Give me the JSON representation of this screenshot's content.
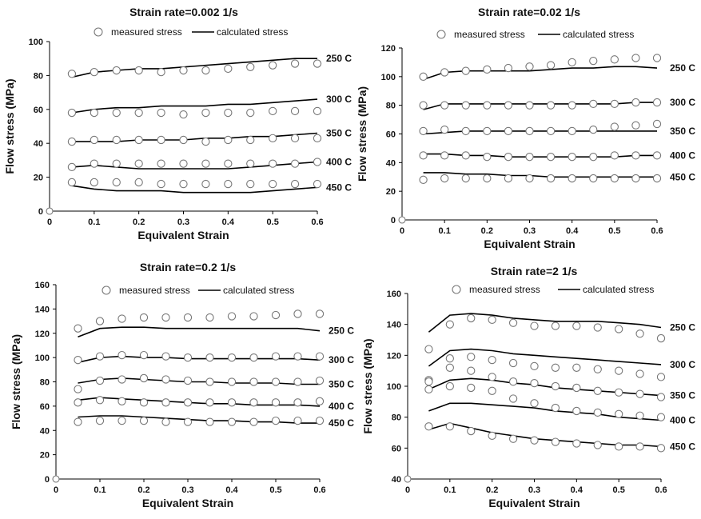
{
  "legend": {
    "measured": "measured stress",
    "calculated": "calculated stress"
  },
  "chart_data": [
    {
      "type": "scatter",
      "title": "Strain rate=0.002 1/s",
      "xlabel": "Equivalent Strain",
      "ylabel": "Flow stress (MPa)",
      "xlim": [
        0,
        0.6
      ],
      "ylim": [
        0,
        100
      ],
      "xticks": [
        "0",
        "0.1",
        "0.2",
        "0.3",
        "0.4",
        "0.5",
        "0.6"
      ],
      "yticks": [
        "0",
        "20",
        "40",
        "60",
        "80",
        "100"
      ],
      "legend_items": [
        "measured stress",
        "calculated stress"
      ],
      "x": [
        0.05,
        0.1,
        0.15,
        0.2,
        0.25,
        0.3,
        0.35,
        0.4,
        0.45,
        0.5,
        0.55,
        0.6
      ],
      "series": [
        {
          "name": "250 C",
          "measured": [
            81,
            82,
            83,
            83,
            82,
            83,
            83,
            84,
            85,
            86,
            87,
            87
          ],
          "calculated": [
            79,
            82,
            83,
            84,
            84,
            85,
            86,
            87,
            88,
            89,
            90,
            90
          ]
        },
        {
          "name": "300 C",
          "measured": [
            58,
            58,
            58,
            58,
            58,
            57,
            58,
            58,
            58,
            59,
            59,
            59
          ],
          "calculated": [
            58,
            60,
            61,
            61,
            62,
            62,
            62,
            63,
            63,
            64,
            65,
            66
          ]
        },
        {
          "name": "350 C",
          "measured": [
            41,
            42,
            42,
            42,
            42,
            42,
            41,
            42,
            42,
            43,
            43,
            43
          ],
          "calculated": [
            41,
            41,
            41,
            42,
            42,
            42,
            43,
            43,
            44,
            44,
            45,
            46
          ]
        },
        {
          "name": "400 C",
          "measured": [
            26,
            28,
            28,
            28,
            28,
            28,
            28,
            28,
            28,
            28,
            28,
            29
          ],
          "calculated": [
            26,
            27,
            26,
            25,
            25,
            25,
            25,
            25,
            26,
            27,
            28,
            29
          ]
        },
        {
          "name": "450 C",
          "measured": [
            17,
            17,
            17,
            17,
            16,
            16,
            16,
            16,
            16,
            16,
            16,
            16
          ],
          "calculated": [
            15,
            13,
            12,
            12,
            12,
            11,
            11,
            11,
            11,
            12,
            13,
            14
          ]
        }
      ]
    },
    {
      "type": "scatter",
      "title": "Strain rate=0.02 1/s",
      "xlabel": "Equivalent Strain",
      "ylabel": "Flow stress (MPa)",
      "xlim": [
        0,
        0.6
      ],
      "ylim": [
        0,
        120
      ],
      "xticks": [
        "0",
        "0.1",
        "0.2",
        "0.3",
        "0.4",
        "0.5",
        "0.6"
      ],
      "yticks": [
        "0",
        "20",
        "40",
        "60",
        "80",
        "100",
        "120"
      ],
      "legend_items": [
        "measured stress",
        "calculated stress"
      ],
      "x": [
        0.05,
        0.1,
        0.15,
        0.2,
        0.25,
        0.3,
        0.35,
        0.4,
        0.45,
        0.5,
        0.55,
        0.6
      ],
      "series": [
        {
          "name": "250 C",
          "measured": [
            100,
            103,
            104,
            105,
            106,
            107,
            108,
            110,
            111,
            112,
            113,
            113
          ],
          "calculated": [
            98,
            103,
            104,
            104,
            104,
            104,
            105,
            106,
            106,
            107,
            107,
            106
          ]
        },
        {
          "name": "300 C",
          "measured": [
            80,
            80,
            80,
            80,
            80,
            80,
            80,
            80,
            81,
            81,
            82,
            82
          ],
          "calculated": [
            77,
            81,
            81,
            81,
            81,
            81,
            81,
            81,
            81,
            81,
            82,
            82
          ]
        },
        {
          "name": "350 C",
          "measured": [
            62,
            63,
            62,
            62,
            62,
            62,
            62,
            62,
            63,
            65,
            66,
            67
          ],
          "calculated": [
            60,
            61,
            62,
            62,
            62,
            62,
            62,
            62,
            62,
            62,
            62,
            62
          ]
        },
        {
          "name": "400 C",
          "measured": [
            45,
            45,
            45,
            44,
            44,
            44,
            44,
            44,
            44,
            45,
            45,
            45
          ],
          "calculated": [
            46,
            46,
            45,
            45,
            44,
            44,
            44,
            44,
            44,
            44,
            45,
            45
          ]
        },
        {
          "name": "450 C",
          "measured": [
            28,
            29,
            29,
            29,
            29,
            29,
            29,
            29,
            29,
            29,
            29,
            29
          ],
          "calculated": [
            33,
            33,
            32,
            32,
            31,
            31,
            30,
            30,
            30,
            30,
            30,
            30
          ]
        }
      ]
    },
    {
      "type": "scatter",
      "title": "Strain rate=0.2 1/s",
      "xlabel": "Equivalent Strain",
      "ylabel": "Flow stress (MPa)",
      "xlim": [
        0,
        0.6
      ],
      "ylim": [
        0,
        160
      ],
      "xticks": [
        "0",
        "0.1",
        "0.2",
        "0.3",
        "0.4",
        "0.5",
        "0.6"
      ],
      "yticks": [
        "0",
        "20",
        "40",
        "60",
        "80",
        "100",
        "120",
        "140",
        "160"
      ],
      "legend_items": [
        "measured stress",
        "calculated stress"
      ],
      "x": [
        0.05,
        0.1,
        0.15,
        0.2,
        0.25,
        0.3,
        0.35,
        0.4,
        0.45,
        0.5,
        0.55,
        0.6
      ],
      "series": [
        {
          "name": "250 C",
          "measured": [
            124,
            130,
            132,
            133,
            133,
            133,
            133,
            134,
            134,
            135,
            136,
            136
          ],
          "calculated": [
            117,
            124,
            125,
            125,
            124,
            124,
            124,
            124,
            124,
            124,
            124,
            122
          ]
        },
        {
          "name": "300 C",
          "measured": [
            98,
            101,
            102,
            102,
            101,
            100,
            100,
            100,
            100,
            101,
            101,
            101
          ],
          "calculated": [
            96,
            100,
            101,
            100,
            100,
            99,
            99,
            99,
            99,
            99,
            99,
            98
          ]
        },
        {
          "name": "350 C",
          "measured": [
            74,
            81,
            82,
            83,
            82,
            81,
            80,
            80,
            80,
            80,
            80,
            81
          ],
          "calculated": [
            79,
            82,
            83,
            82,
            81,
            80,
            80,
            79,
            79,
            79,
            78,
            78
          ]
        },
        {
          "name": "400 C",
          "measured": [
            63,
            65,
            64,
            63,
            63,
            63,
            63,
            63,
            63,
            63,
            63,
            64
          ],
          "calculated": [
            65,
            67,
            66,
            65,
            64,
            63,
            62,
            62,
            61,
            61,
            61,
            60
          ]
        },
        {
          "name": "450 C",
          "measured": [
            47,
            48,
            48,
            48,
            47,
            47,
            47,
            47,
            47,
            48,
            48,
            48
          ],
          "calculated": [
            51,
            52,
            52,
            51,
            50,
            49,
            48,
            48,
            47,
            47,
            46,
            46
          ]
        }
      ]
    },
    {
      "type": "scatter",
      "title": "Strain rate=2  1/s",
      "xlabel": "Equivalent Strain",
      "ylabel": "Flow stress (MPa)",
      "xlim": [
        0,
        0.6
      ],
      "ylim": [
        40,
        160
      ],
      "xticks": [
        "0",
        "0.1",
        "0.2",
        "0.3",
        "0.4",
        "0.5",
        "0.6"
      ],
      "yticks": [
        "40",
        "60",
        "80",
        "100",
        "120",
        "140",
        "160"
      ],
      "legend_items": [
        "measured stress",
        "calculated stress"
      ],
      "x": [
        0.05,
        0.1,
        0.15,
        0.2,
        0.25,
        0.3,
        0.35,
        0.4,
        0.45,
        0.5,
        0.55,
        0.6
      ],
      "series": [
        {
          "name": "250 C",
          "measured": [
            124,
            140,
            144,
            143,
            141,
            139,
            139,
            139,
            138,
            137,
            134,
            131
          ],
          "calculated": [
            135,
            146,
            147,
            146,
            144,
            143,
            142,
            142,
            142,
            141,
            140,
            138
          ]
        },
        {
          "name": "300 C",
          "measured": [
            104,
            118,
            119,
            117,
            115,
            113,
            112,
            112,
            111,
            110,
            108,
            106
          ],
          "calculated": [
            113,
            123,
            124,
            123,
            121,
            120,
            119,
            118,
            117,
            116,
            115,
            114
          ]
        },
        {
          "name": "350 C",
          "measured": [
            103,
            112,
            110,
            106,
            103,
            102,
            100,
            99,
            97,
            96,
            95,
            93
          ],
          "calculated": [
            98,
            104,
            105,
            104,
            102,
            101,
            99,
            98,
            97,
            96,
            95,
            94
          ]
        },
        {
          "name": "400 C",
          "measured": [
            98,
            100,
            99,
            97,
            92,
            89,
            86,
            84,
            83,
            82,
            81,
            80
          ],
          "calculated": [
            84,
            89,
            89,
            88,
            87,
            86,
            84,
            83,
            82,
            80,
            79,
            78
          ]
        },
        {
          "name": "450 C",
          "measured": [
            74,
            74,
            71,
            68,
            66,
            65,
            64,
            63,
            62,
            61,
            61,
            60
          ],
          "calculated": [
            72,
            76,
            73,
            70,
            68,
            66,
            65,
            64,
            63,
            62,
            62,
            61
          ]
        }
      ]
    }
  ]
}
